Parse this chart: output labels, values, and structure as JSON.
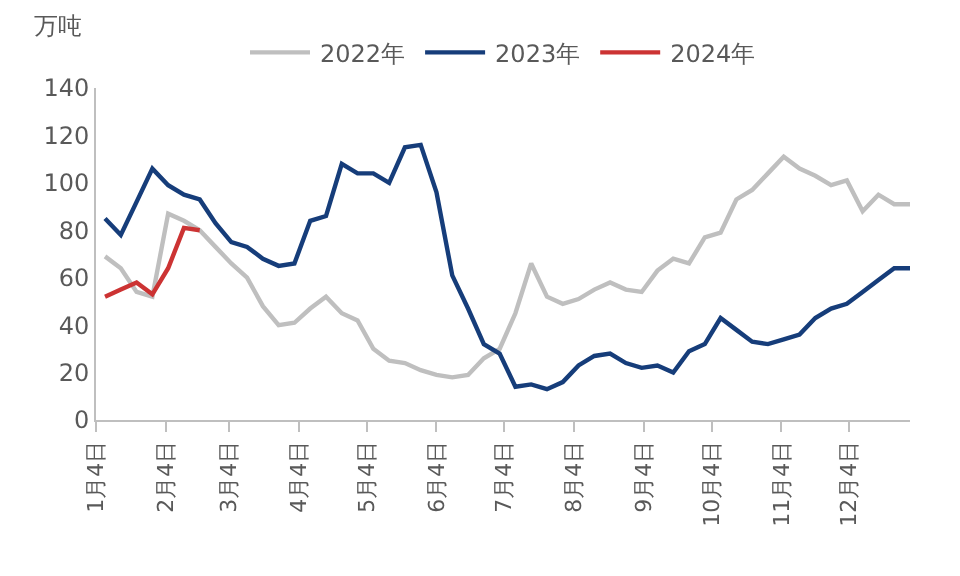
{
  "chart_data": {
    "type": "line",
    "ylabel": "万吨",
    "x": [
      "--01-08",
      "--01-15",
      "--01-22",
      "--01-29",
      "--02-05",
      "--02-12",
      "--02-19",
      "--02-26",
      "--03-05",
      "--03-12",
      "--03-19",
      "--03-26",
      "--04-02",
      "--04-09",
      "--04-16",
      "--04-23",
      "--04-30",
      "--05-07",
      "--05-14",
      "--05-21",
      "--05-28",
      "--06-04",
      "--06-11",
      "--06-18",
      "--06-25",
      "--07-02",
      "--07-09",
      "--07-16",
      "--07-23",
      "--07-30",
      "--08-06",
      "--08-13",
      "--08-20",
      "--08-27",
      "--09-03",
      "--09-10",
      "--09-17",
      "--09-24",
      "--10-01",
      "--10-08",
      "--10-15",
      "--10-22",
      "--10-29",
      "--11-05",
      "--11-12",
      "--11-19",
      "--11-26",
      "--12-03",
      "--12-10",
      "--12-17",
      "--12-24",
      "--12-31"
    ],
    "series": [
      {
        "name": "2022年",
        "color": "#bfbfbf",
        "values": [
          69,
          64,
          54,
          52,
          87,
          84,
          80,
          73,
          66,
          60,
          48,
          40,
          41,
          47,
          52,
          45,
          42,
          30,
          25,
          24,
          21,
          19,
          18,
          19,
          26,
          30,
          45,
          66,
          52,
          49,
          51,
          55,
          58,
          55,
          54,
          63,
          68,
          66,
          77,
          79,
          93,
          97,
          104,
          111,
          106,
          103,
          99,
          101,
          88,
          95,
          91,
          91
        ]
      },
      {
        "name": "2023年",
        "color": "#163d7a",
        "values": [
          85,
          78,
          92,
          106,
          99,
          95,
          93,
          83,
          75,
          73,
          68,
          65,
          66,
          84,
          86,
          108,
          104,
          104,
          100,
          115,
          116,
          96,
          61,
          47,
          32,
          28,
          14,
          15,
          13,
          16,
          23,
          27,
          28,
          24,
          22,
          23,
          20,
          29,
          32,
          43,
          38,
          33,
          32,
          34,
          36,
          43,
          47,
          49,
          54,
          59,
          64,
          64
        ]
      },
      {
        "name": "2024年",
        "color": "#cc3333",
        "x": [
          "--01-08",
          "--01-15",
          "--01-22",
          "--01-29",
          "--02-05",
          "--02-12",
          "--02-19"
        ],
        "values": [
          52,
          55,
          58,
          53,
          64,
          81,
          80
        ]
      }
    ],
    "xlim": [
      "--01-04",
      "--12-31"
    ],
    "xticks": [
      {
        "value": "--01-04",
        "label": "1月4日"
      },
      {
        "value": "--02-04",
        "label": "2月4日"
      },
      {
        "value": "--03-04",
        "label": "3月4日"
      },
      {
        "value": "--04-04",
        "label": "4月4日"
      },
      {
        "value": "--05-04",
        "label": "5月4日"
      },
      {
        "value": "--06-04",
        "label": "6月4日"
      },
      {
        "value": "--07-04",
        "label": "7月4日"
      },
      {
        "value": "--08-04",
        "label": "8月4日"
      },
      {
        "value": "--09-04",
        "label": "9月4日"
      },
      {
        "value": "--10-04",
        "label": "10月4日"
      },
      {
        "value": "--11-04",
        "label": "11月4日"
      },
      {
        "value": "--12-04",
        "label": "12月4日"
      }
    ],
    "ylim": [
      0,
      140
    ],
    "yticks": [
      0,
      20,
      40,
      60,
      80,
      100,
      120,
      140
    ],
    "legend": "top",
    "marker": "none",
    "line_style": "solid"
  }
}
